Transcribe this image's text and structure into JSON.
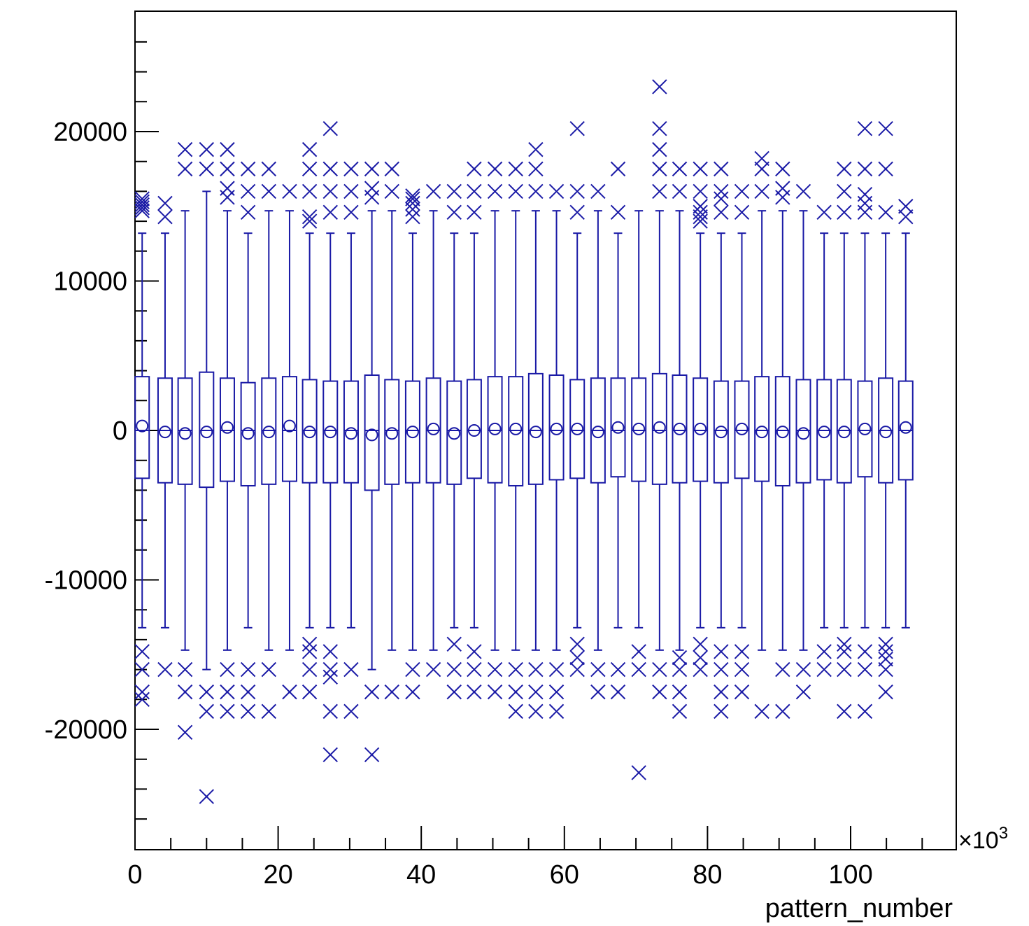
{
  "chart_data": {
    "type": "boxplot",
    "title": "",
    "xlabel": "pattern_number",
    "ylabel": "",
    "x_multiplier_label": "×10",
    "x_multiplier_exponent": "3",
    "xlim": [
      0,
      115
    ],
    "ylim": [
      -28000,
      28000
    ],
    "x_ticks": [
      0,
      20,
      40,
      60,
      80,
      100
    ],
    "x_tick_labels": [
      "0",
      "20",
      "40",
      "60",
      "80",
      "100"
    ],
    "y_ticks": [
      -20000,
      -10000,
      0,
      10000,
      20000
    ],
    "y_tick_labels": [
      "-20000",
      "-10000",
      "0",
      "10000",
      "20000"
    ],
    "grid": false,
    "color": "#1a1aa6",
    "box_centers": [
      1.0,
      4.2,
      7.0,
      10.0,
      12.9,
      15.8,
      18.7,
      21.6,
      24.4,
      27.3,
      30.2,
      33.1,
      35.9,
      38.8,
      41.7,
      44.6,
      47.4,
      50.3,
      53.2,
      56.0,
      58.9,
      61.8,
      64.7,
      67.5,
      70.4,
      73.3,
      76.1,
      79.0,
      81.9,
      84.8,
      87.6,
      90.5,
      93.4,
      96.3,
      99.1,
      102.0,
      104.9,
      107.7
    ],
    "boxes": [
      {
        "q1": -3200,
        "median": 0,
        "q3": 3600,
        "mean": 300,
        "wlo": -13200,
        "whi": 13200,
        "outliers": [
          15500,
          15300,
          15100,
          14900,
          14700,
          -14800,
          -16000,
          -17500,
          -18000
        ]
      },
      {
        "q1": -3500,
        "median": 0,
        "q3": 3500,
        "mean": -100,
        "wlo": -13200,
        "whi": 13200,
        "outliers": [
          14300,
          15200,
          -16000
        ]
      },
      {
        "q1": -3600,
        "median": 0,
        "q3": 3500,
        "mean": -200,
        "wlo": -14700,
        "whi": 14700,
        "outliers": [
          17500,
          18800,
          -16000,
          -17500,
          -20200
        ]
      },
      {
        "q1": -3800,
        "median": 0,
        "q3": 3900,
        "mean": -100,
        "wlo": -16000,
        "whi": 16000,
        "outliers": [
          17500,
          18800,
          -17500,
          -18800,
          -24500
        ]
      },
      {
        "q1": -3400,
        "median": 0,
        "q3": 3500,
        "mean": 200,
        "wlo": -14700,
        "whi": 14700,
        "outliers": [
          15600,
          16200,
          17500,
          18800,
          -16000,
          -17500,
          -18800
        ]
      },
      {
        "q1": -3700,
        "median": 0,
        "q3": 3200,
        "mean": -200,
        "wlo": -13200,
        "whi": 13200,
        "outliers": [
          14600,
          16000,
          17500,
          -16000,
          -17500,
          -18800
        ]
      },
      {
        "q1": -3600,
        "median": 0,
        "q3": 3500,
        "mean": -100,
        "wlo": -14700,
        "whi": 14700,
        "outliers": [
          16000,
          17500,
          -16000,
          -18800
        ]
      },
      {
        "q1": -3400,
        "median": 0,
        "q3": 3600,
        "mean": 300,
        "wlo": -14700,
        "whi": 14700,
        "outliers": [
          16000,
          -17500
        ]
      },
      {
        "q1": -3500,
        "median": 0,
        "q3": 3400,
        "mean": -100,
        "wlo": -13200,
        "whi": 13200,
        "outliers": [
          14000,
          14300,
          16000,
          17500,
          18800,
          -14300,
          -14800,
          -16000,
          -17500
        ]
      },
      {
        "q1": -3500,
        "median": 0,
        "q3": 3300,
        "mean": -100,
        "wlo": -13200,
        "whi": 13200,
        "outliers": [
          14600,
          16000,
          17500,
          20200,
          -14800,
          -16000,
          -16500,
          -18800,
          -21700
        ]
      },
      {
        "q1": -3500,
        "median": 0,
        "q3": 3300,
        "mean": -200,
        "wlo": -13200,
        "whi": 13200,
        "outliers": [
          14600,
          16000,
          17500,
          -16000,
          -18800
        ]
      },
      {
        "q1": -4000,
        "median": 0,
        "q3": 3700,
        "mean": -300,
        "wlo": -16000,
        "whi": 14700,
        "outliers": [
          15600,
          16200,
          17500,
          -17500,
          -21700
        ]
      },
      {
        "q1": -3600,
        "median": 0,
        "q3": 3400,
        "mean": -200,
        "wlo": -14700,
        "whi": 14700,
        "outliers": [
          16000,
          17500,
          -17500
        ]
      },
      {
        "q1": -3500,
        "median": 0,
        "q3": 3300,
        "mean": -100,
        "wlo": -14700,
        "whi": 13200,
        "outliers": [
          14300,
          14800,
          15200,
          15500,
          15700,
          -16000,
          -17500
        ]
      },
      {
        "q1": -3500,
        "median": 0,
        "q3": 3500,
        "mean": 100,
        "wlo": -14700,
        "whi": 14700,
        "outliers": [
          16000,
          -16000
        ]
      },
      {
        "q1": -3600,
        "median": 0,
        "q3": 3300,
        "mean": -200,
        "wlo": -13200,
        "whi": 13200,
        "outliers": [
          14600,
          16000,
          -14300,
          -16000,
          -17500
        ]
      },
      {
        "q1": -3200,
        "median": 0,
        "q3": 3400,
        "mean": 0,
        "wlo": -13200,
        "whi": 13200,
        "outliers": [
          14600,
          16000,
          17500,
          -14800,
          -16000,
          -17500
        ]
      },
      {
        "q1": -3500,
        "median": 0,
        "q3": 3600,
        "mean": 100,
        "wlo": -14700,
        "whi": 14700,
        "outliers": [
          16000,
          17500,
          -16000,
          -17500
        ]
      },
      {
        "q1": -3700,
        "median": 0,
        "q3": 3600,
        "mean": 100,
        "wlo": -14700,
        "whi": 14700,
        "outliers": [
          16000,
          17500,
          -16000,
          -17500,
          -18800
        ]
      },
      {
        "q1": -3600,
        "median": 0,
        "q3": 3800,
        "mean": -100,
        "wlo": -14700,
        "whi": 14700,
        "outliers": [
          16000,
          17500,
          18800,
          -16000,
          -17500,
          -18800
        ]
      },
      {
        "q1": -3300,
        "median": 0,
        "q3": 3700,
        "mean": 100,
        "wlo": -14700,
        "whi": 14700,
        "outliers": [
          16000,
          -16000,
          -17500,
          -18800
        ]
      },
      {
        "q1": -3200,
        "median": 0,
        "q3": 3400,
        "mean": 100,
        "wlo": -13200,
        "whi": 13200,
        "outliers": [
          14600,
          16000,
          20200,
          -14300,
          -15200,
          -16000
        ]
      },
      {
        "q1": -3500,
        "median": 0,
        "q3": 3500,
        "mean": -100,
        "wlo": -14700,
        "whi": 14700,
        "outliers": [
          16000,
          -16000,
          -17500
        ]
      },
      {
        "q1": -3100,
        "median": 0,
        "q3": 3500,
        "mean": 200,
        "wlo": -13200,
        "whi": 13200,
        "outliers": [
          14600,
          17500,
          -16000,
          -17500
        ]
      },
      {
        "q1": -3400,
        "median": 0,
        "q3": 3500,
        "mean": 100,
        "wlo": -13200,
        "whi": 14700,
        "outliers": [
          -14800,
          -16000,
          -22900
        ]
      },
      {
        "q1": -3600,
        "median": 0,
        "q3": 3800,
        "mean": 200,
        "wlo": -14700,
        "whi": 14700,
        "outliers": [
          16000,
          17500,
          18800,
          20200,
          23000,
          -16000,
          -17500
        ]
      },
      {
        "q1": -3500,
        "median": 0,
        "q3": 3700,
        "mean": 100,
        "wlo": -14700,
        "whi": 14700,
        "outliers": [
          16000,
          17500,
          -15200,
          -16000,
          -17500,
          -18800
        ]
      },
      {
        "q1": -3400,
        "median": 0,
        "q3": 3500,
        "mean": 100,
        "wlo": -13200,
        "whi": 13200,
        "outliers": [
          14000,
          14300,
          14600,
          15000,
          16000,
          17500,
          -14300,
          -15200,
          -16000
        ]
      },
      {
        "q1": -3500,
        "median": 0,
        "q3": 3300,
        "mean": -100,
        "wlo": -13200,
        "whi": 13200,
        "outliers": [
          14600,
          15500,
          16000,
          17500,
          -14800,
          -16000,
          -17500,
          -18800
        ]
      },
      {
        "q1": -3200,
        "median": 0,
        "q3": 3300,
        "mean": 100,
        "wlo": -13200,
        "whi": 13200,
        "outliers": [
          14600,
          16000,
          -14800,
          -16000,
          -17500
        ]
      },
      {
        "q1": -3400,
        "median": 0,
        "q3": 3600,
        "mean": -100,
        "wlo": -14700,
        "whi": 14700,
        "outliers": [
          16000,
          17500,
          18200,
          -18800
        ]
      },
      {
        "q1": -3700,
        "median": 0,
        "q3": 3600,
        "mean": -100,
        "wlo": -14700,
        "whi": 14700,
        "outliers": [
          15600,
          16200,
          17500,
          -16000,
          -18800
        ]
      },
      {
        "q1": -3500,
        "median": 0,
        "q3": 3400,
        "mean": -200,
        "wlo": -14700,
        "whi": 14700,
        "outliers": [
          16000,
          -16000,
          -17500
        ]
      },
      {
        "q1": -3300,
        "median": 0,
        "q3": 3400,
        "mean": -100,
        "wlo": -13200,
        "whi": 13200,
        "outliers": [
          14600,
          -14800,
          -16000
        ]
      },
      {
        "q1": -3500,
        "median": 0,
        "q3": 3400,
        "mean": -100,
        "wlo": -13200,
        "whi": 13200,
        "outliers": [
          14600,
          16000,
          17500,
          -14300,
          -14800,
          -16000,
          -18800
        ]
      },
      {
        "q1": -3100,
        "median": 0,
        "q3": 3300,
        "mean": 100,
        "wlo": -13200,
        "whi": 13200,
        "outliers": [
          14600,
          15200,
          15800,
          17500,
          20200,
          -14800,
          -16000,
          -18800
        ]
      },
      {
        "q1": -3500,
        "median": 0,
        "q3": 3500,
        "mean": -100,
        "wlo": -13200,
        "whi": 13200,
        "outliers": [
          14600,
          17500,
          20200,
          -14300,
          -14800,
          -15300,
          -16000,
          -17500
        ]
      },
      {
        "q1": -3300,
        "median": 0,
        "q3": 3300,
        "mean": 200,
        "wlo": -13200,
        "whi": 13200,
        "outliers": [
          14300,
          15000
        ]
      }
    ]
  }
}
